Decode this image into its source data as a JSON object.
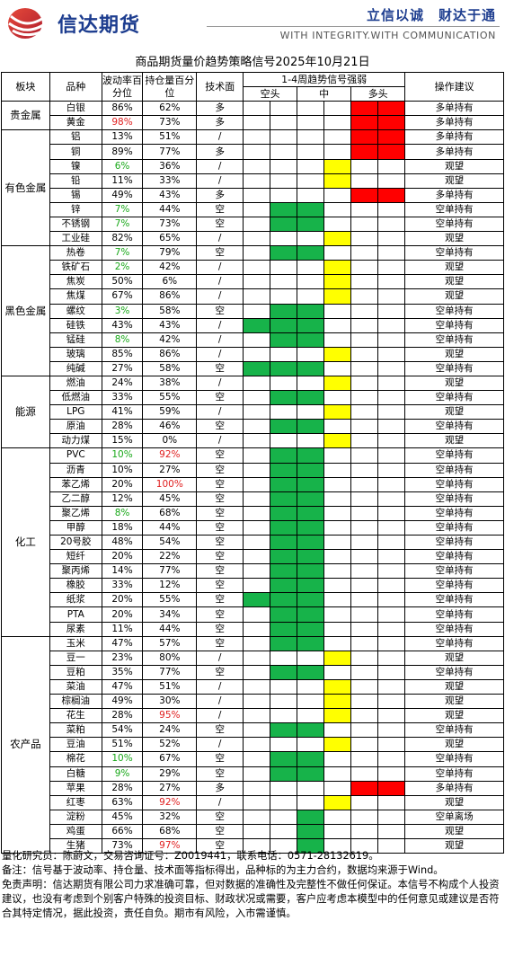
{
  "header": {
    "company": "信达期货",
    "slogan_cn": "立信以诚　财达于通",
    "slogan_en": "WITH INTEGRITY.WITH COMMUNICATION"
  },
  "title": "商品期货量价趋势策略信号2025年10月21日",
  "columns": {
    "sector": "板块",
    "variety": "品种",
    "vol": "波动率百分位",
    "oi": "持仓量百分位",
    "tech": "技术面",
    "signal": "1-4周趋势信号强弱",
    "short": "空头",
    "mid": "中",
    "long": "多头",
    "advice": "操作建议"
  },
  "colors": {
    "green": "#17b34a",
    "yellow": "#ffff00",
    "red": "#ff0000",
    "green_text": "#18a818",
    "red_text": "#e02020"
  },
  "sections": [
    {
      "name": "贵金属",
      "rows": [
        {
          "v": "白银",
          "vol": "86%",
          "oi": "62%",
          "t": "多",
          "sig": "R2",
          "a": "多单持有"
        },
        {
          "v": "黄金",
          "vol": "98%",
          "vc": "r",
          "oi": "73%",
          "t": "多",
          "sig": "R2",
          "a": "多单持有"
        }
      ]
    },
    {
      "name": "有色金属",
      "rows": [
        {
          "v": "铝",
          "vol": "13%",
          "oi": "51%",
          "t": "/",
          "sig": "R2",
          "a": "多单持有"
        },
        {
          "v": "铜",
          "vol": "89%",
          "oi": "77%",
          "t": "多",
          "sig": "R2",
          "a": "多单持有"
        },
        {
          "v": "镍",
          "vol": "6%",
          "vc": "g",
          "oi": "36%",
          "t": "/",
          "sig": "Y",
          "a": "观望"
        },
        {
          "v": "铅",
          "vol": "11%",
          "oi": "33%",
          "t": "/",
          "sig": "Y",
          "a": "观望"
        },
        {
          "v": "锡",
          "vol": "49%",
          "oi": "43%",
          "t": "多",
          "sig": "R2",
          "a": "多单持有"
        },
        {
          "v": "锌",
          "vol": "7%",
          "vc": "g",
          "oi": "44%",
          "t": "空",
          "sig": "G2",
          "a": "空单持有"
        },
        {
          "v": "不锈钢",
          "vol": "7%",
          "vc": "g",
          "oi": "73%",
          "t": "空",
          "sig": "G2",
          "a": "空单持有"
        },
        {
          "v": "工业硅",
          "vol": "82%",
          "oi": "65%",
          "t": "/",
          "sig": "Y",
          "a": "观望"
        }
      ]
    },
    {
      "name": "黑色金属",
      "rows": [
        {
          "v": "热卷",
          "vol": "7%",
          "vc": "g",
          "oi": "79%",
          "t": "空",
          "sig": "G2",
          "a": "空单持有"
        },
        {
          "v": "铁矿石",
          "vol": "2%",
          "vc": "g",
          "oi": "42%",
          "t": "/",
          "sig": "Y",
          "a": "观望"
        },
        {
          "v": "焦炭",
          "vol": "50%",
          "oi": "6%",
          "t": "/",
          "sig": "Y",
          "a": "观望"
        },
        {
          "v": "焦煤",
          "vol": "67%",
          "oi": "86%",
          "t": "/",
          "sig": "Y",
          "a": "观望"
        },
        {
          "v": "螺纹",
          "vol": "3%",
          "vc": "g",
          "oi": "58%",
          "t": "空",
          "sig": "G2",
          "a": "空单持有"
        },
        {
          "v": "硅铁",
          "vol": "43%",
          "oi": "43%",
          "t": "/",
          "sig": "G3",
          "a": "空单持有"
        },
        {
          "v": "锰硅",
          "vol": "8%",
          "vc": "g",
          "oi": "42%",
          "t": "/",
          "sig": "G2",
          "a": "空单持有"
        },
        {
          "v": "玻璃",
          "vol": "85%",
          "oi": "86%",
          "t": "/",
          "sig": "Y",
          "a": "观望"
        },
        {
          "v": "纯碱",
          "vol": "27%",
          "oi": "58%",
          "t": "空",
          "sig": "G3",
          "a": "空单持有"
        }
      ]
    },
    {
      "name": "能源",
      "rows": [
        {
          "v": "燃油",
          "vol": "24%",
          "oi": "38%",
          "t": "/",
          "sig": "Y",
          "a": "观望"
        },
        {
          "v": "低燃油",
          "vol": "33%",
          "oi": "55%",
          "t": "空",
          "sig": "G2",
          "a": "空单持有"
        },
        {
          "v": "LPG",
          "vol": "41%",
          "oi": "59%",
          "t": "/",
          "sig": "Y",
          "a": "观望"
        },
        {
          "v": "原油",
          "vol": "28%",
          "oi": "46%",
          "t": "空",
          "sig": "G2",
          "a": "空单持有"
        },
        {
          "v": "动力煤",
          "vol": "15%",
          "oi": "0%",
          "t": "/",
          "sig": "Y",
          "a": "观望"
        }
      ]
    },
    {
      "name": "化工",
      "rows": [
        {
          "v": "PVC",
          "vol": "10%",
          "vc": "g",
          "oi": "92%",
          "oc": "r",
          "t": "空",
          "sig": "G2",
          "a": "空单持有"
        },
        {
          "v": "沥青",
          "vol": "10%",
          "oi": "27%",
          "t": "空",
          "sig": "G2",
          "a": "空单持有"
        },
        {
          "v": "苯乙烯",
          "vol": "20%",
          "oi": "100%",
          "oc": "r",
          "t": "空",
          "sig": "G2",
          "a": "空单持有"
        },
        {
          "v": "乙二醇",
          "vol": "12%",
          "oi": "45%",
          "t": "空",
          "sig": "G2",
          "a": "空单持有"
        },
        {
          "v": "聚乙烯",
          "vol": "8%",
          "vc": "g",
          "oi": "68%",
          "t": "空",
          "sig": "G2",
          "a": "空单持有"
        },
        {
          "v": "甲醇",
          "vol": "18%",
          "oi": "44%",
          "t": "空",
          "sig": "G2",
          "a": "空单持有"
        },
        {
          "v": "20号胶",
          "vol": "48%",
          "oi": "54%",
          "t": "空",
          "sig": "G2",
          "a": "空单持有"
        },
        {
          "v": "短纤",
          "vol": "20%",
          "oi": "22%",
          "t": "空",
          "sig": "G2",
          "a": "空单持有"
        },
        {
          "v": "聚丙烯",
          "vol": "14%",
          "oi": "77%",
          "t": "空",
          "sig": "G2",
          "a": "空单持有"
        },
        {
          "v": "橡胶",
          "vol": "33%",
          "oi": "12%",
          "t": "空",
          "sig": "G2",
          "a": "空单持有"
        },
        {
          "v": "纸浆",
          "vol": "20%",
          "oi": "55%",
          "t": "空",
          "sig": "G3",
          "a": "空单持有"
        },
        {
          "v": "PTA",
          "vol": "20%",
          "oi": "34%",
          "t": "空",
          "sig": "G2",
          "a": "空单持有"
        },
        {
          "v": "尿素",
          "vol": "11%",
          "oi": "44%",
          "t": "空",
          "sig": "G2",
          "a": "空单持有"
        }
      ]
    },
    {
      "name": "农产品",
      "rows": [
        {
          "v": "玉米",
          "vol": "47%",
          "oi": "57%",
          "t": "空",
          "sig": "G2",
          "a": "空单持有"
        },
        {
          "v": "豆一",
          "vol": "23%",
          "oi": "80%",
          "t": "/",
          "sig": "Y",
          "a": "观望"
        },
        {
          "v": "豆粕",
          "vol": "35%",
          "oi": "77%",
          "t": "空",
          "sig": "G2",
          "a": "空单持有"
        },
        {
          "v": "菜油",
          "vol": "47%",
          "oi": "51%",
          "t": "/",
          "sig": "Y",
          "a": "观望"
        },
        {
          "v": "棕榈油",
          "vol": "49%",
          "oi": "30%",
          "t": "/",
          "sig": "Y",
          "a": "观望"
        },
        {
          "v": "花生",
          "vol": "28%",
          "oi": "95%",
          "oc": "r",
          "t": "/",
          "sig": "Y",
          "a": "观望"
        },
        {
          "v": "菜粕",
          "vol": "54%",
          "oi": "24%",
          "t": "空",
          "sig": "G2",
          "a": "空单持有"
        },
        {
          "v": "豆油",
          "vol": "51%",
          "oi": "52%",
          "t": "/",
          "sig": "Y",
          "a": "观望"
        },
        {
          "v": "棉花",
          "vol": "10%",
          "vc": "g",
          "oi": "67%",
          "t": "空",
          "sig": "G2",
          "a": "空单持有"
        },
        {
          "v": "白糖",
          "vol": "9%",
          "vc": "g",
          "oi": "29%",
          "t": "空",
          "sig": "G2",
          "a": "空单持有"
        },
        {
          "v": "苹果",
          "vol": "28%",
          "oi": "27%",
          "t": "多",
          "sig": "R2",
          "a": "多单持有"
        },
        {
          "v": "红枣",
          "vol": "63%",
          "oi": "92%",
          "oc": "r",
          "t": "/",
          "sig": "Y",
          "a": "观望"
        },
        {
          "v": "淀粉",
          "vol": "45%",
          "oi": "32%",
          "t": "空",
          "sig": "G1",
          "a": "空单离场"
        },
        {
          "v": "鸡蛋",
          "vol": "66%",
          "oi": "68%",
          "t": "空",
          "sig": "G1",
          "a": "观望"
        },
        {
          "v": "生猪",
          "vol": "73%",
          "oi": "97%",
          "oc": "r",
          "t": "空",
          "sig": "G1",
          "a": "观望"
        }
      ]
    }
  ],
  "footer": {
    "line1": "量化研究员：陈蔚文，交易咨询证号：Z0019441，联系电话：0571-28132619。",
    "line2": "备注：信号基于波动率、持仓量、技术面等指标得出，品种标的为主力合约，数据均来源于Wind。",
    "line3": "免责声明：信达期货有限公司力求准确可靠，但对数据的准确性及完整性不做任何保证。本信号不构成个人投资建议，也没有考虑到个别客户特殊的投资目标、财政状况或需要，客户应考虑本模型中的任何意见或建议是否符合其特定情况，据此投资，责任自负。期市有风险，入市需谨慎。"
  }
}
